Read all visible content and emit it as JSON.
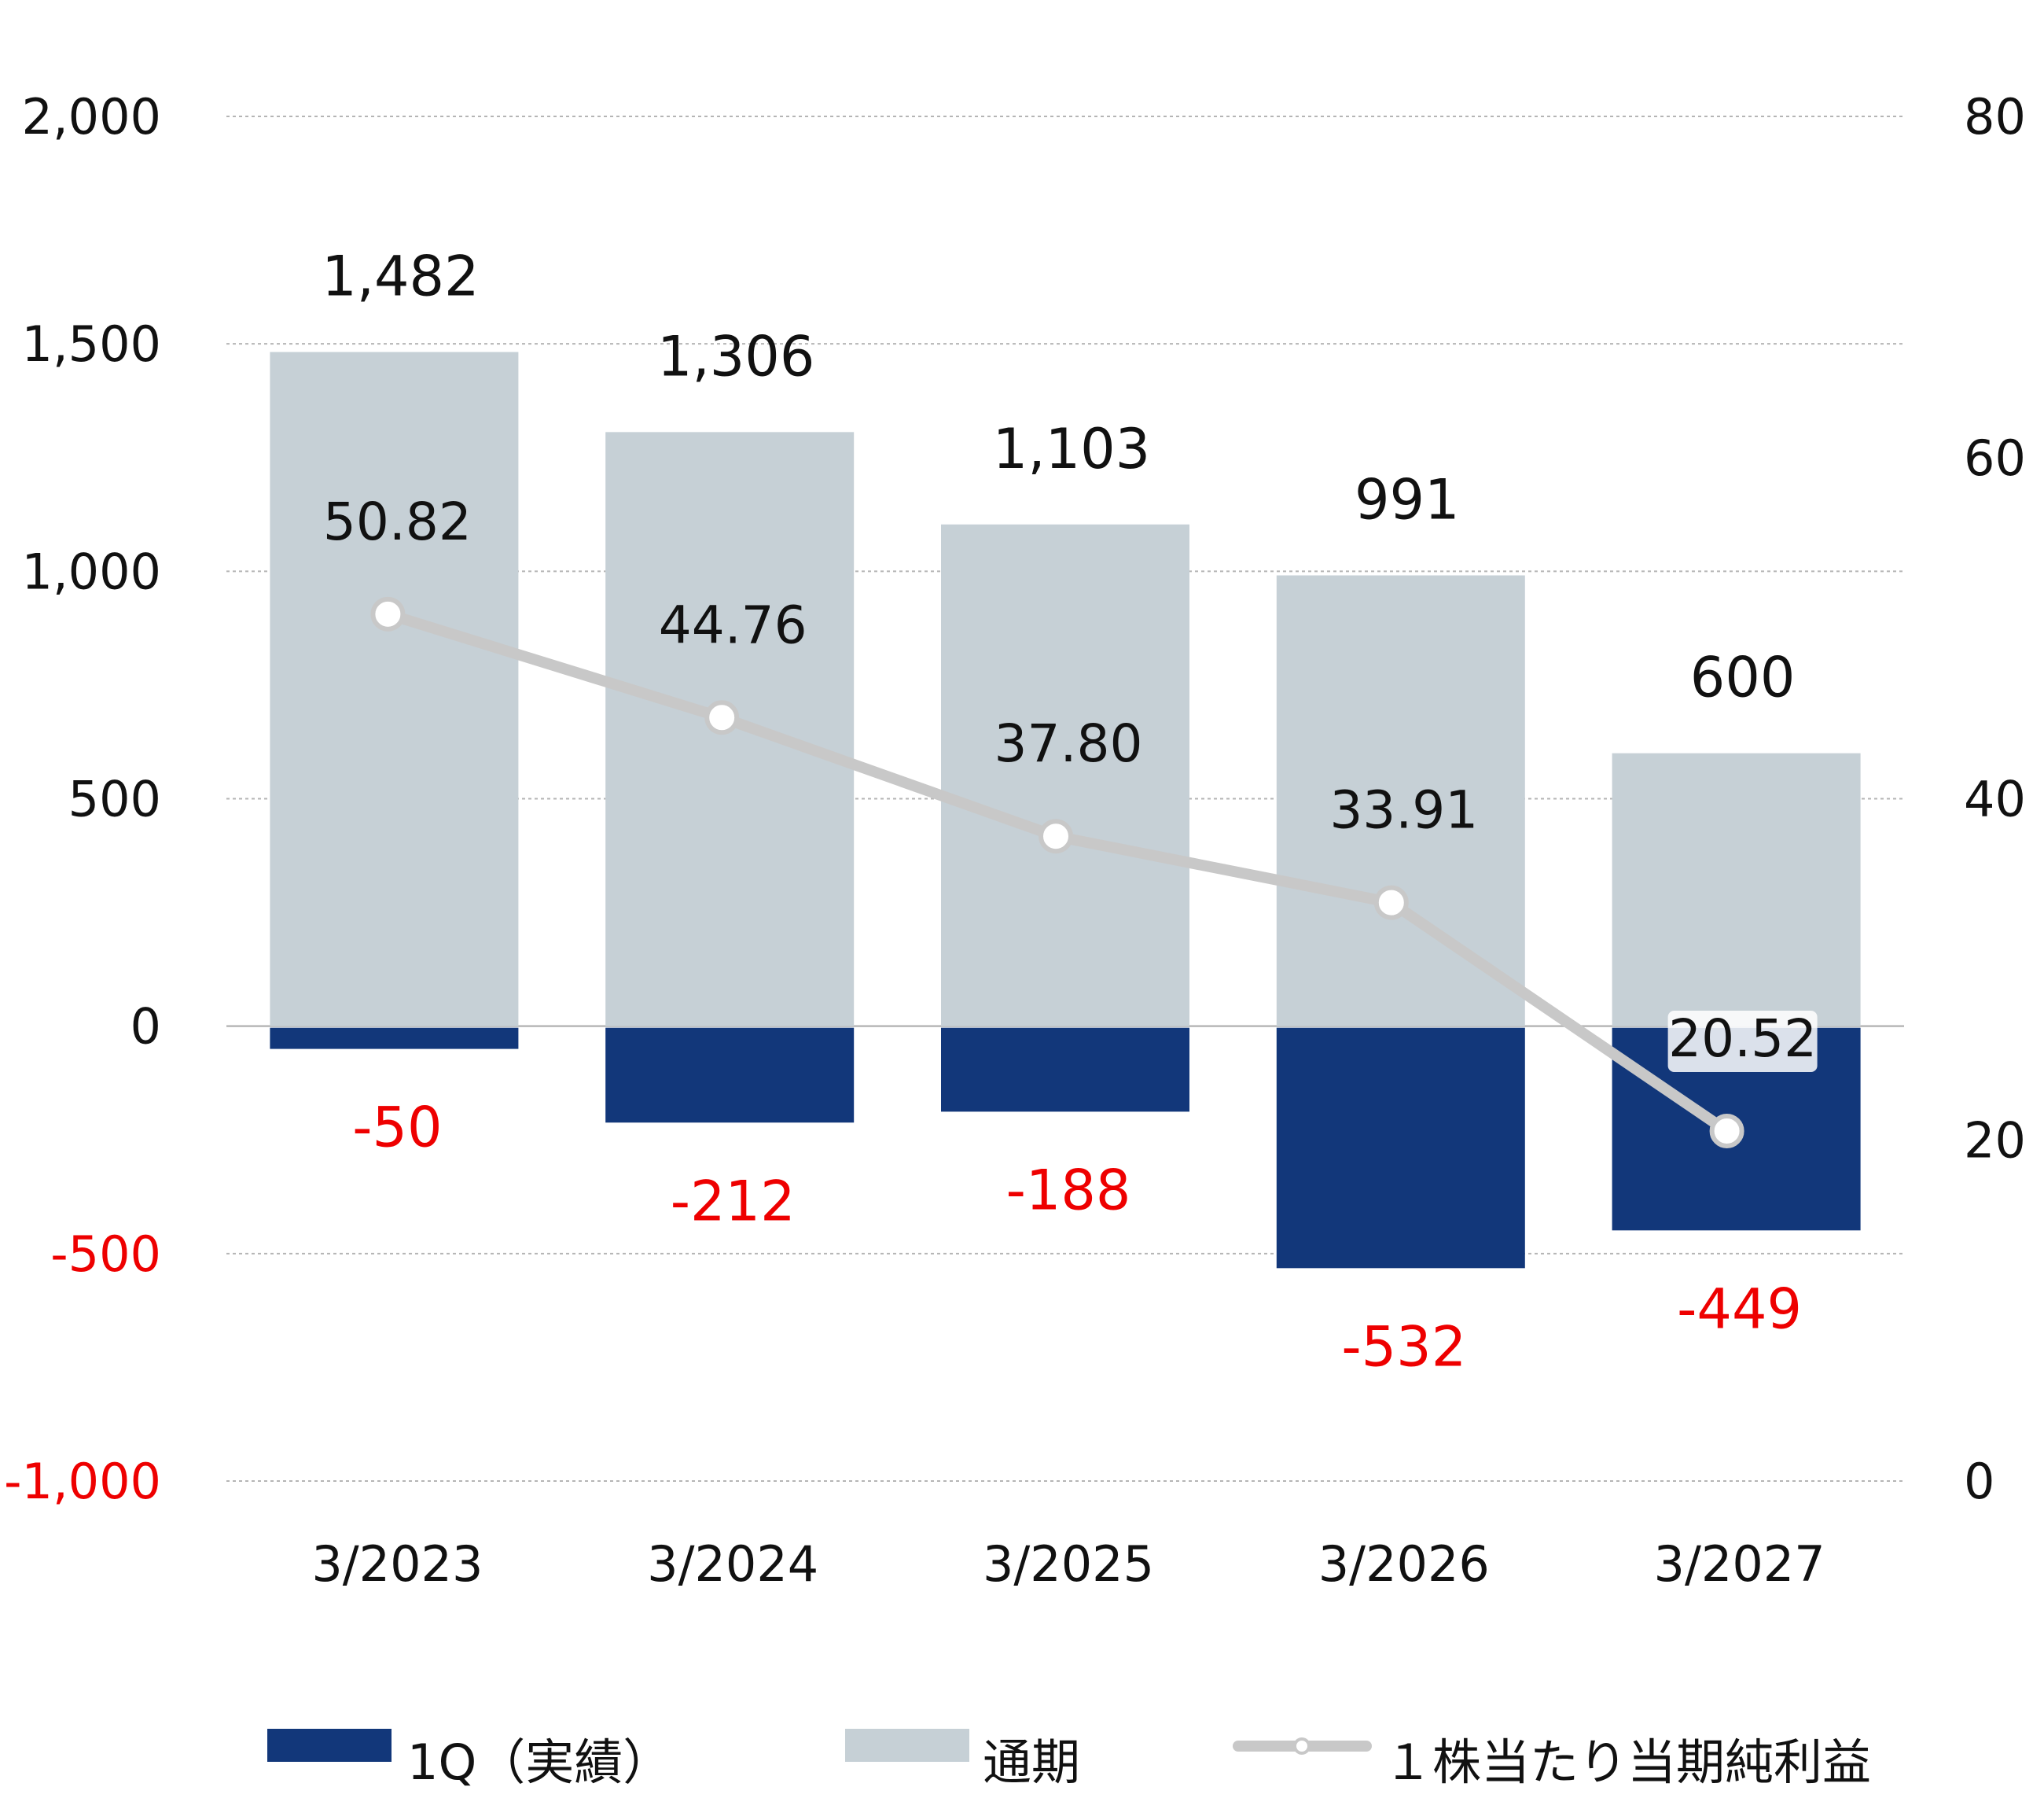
{
  "chart_data": {
    "type": "bar",
    "categories": [
      "3/2023",
      "3/2024",
      "3/2025",
      "3/2026",
      "3/2027"
    ],
    "series": [
      {
        "name": "通期",
        "type": "bar",
        "axis": "left",
        "color": "#c6d0d6",
        "values": [
          1482,
          1306,
          1103,
          991,
          600
        ],
        "labels": [
          "1,482",
          "1,306",
          "1,103",
          "991",
          "600"
        ]
      },
      {
        "name": "1Q（実績）",
        "type": "bar",
        "axis": "left",
        "color": "#12377a",
        "values": [
          -50,
          -212,
          -188,
          -532,
          -449
        ],
        "labels": [
          "-50",
          "-212",
          "-188",
          "-532",
          "-449"
        ],
        "label_color": "#ee0000"
      },
      {
        "name": "１株当たり当期純利益",
        "type": "line",
        "axis": "right",
        "color": "#c8c8c8",
        "values": [
          50.82,
          44.76,
          37.8,
          33.91,
          20.52
        ],
        "labels": [
          "50.82",
          "44.76",
          "37.80",
          "33.91",
          "20.52"
        ]
      }
    ],
    "y_left": {
      "ylim": [
        -1000,
        2000
      ],
      "ticks": [
        2000,
        1500,
        1000,
        500,
        0,
        -500,
        -1000
      ],
      "tick_labels": [
        "2,000",
        "1,500",
        "1,000",
        "500",
        "0",
        "-500",
        "-1,000"
      ],
      "negative_color": "#ee0000"
    },
    "y_right": {
      "ylim": [
        0,
        80
      ],
      "ticks": [
        80,
        60,
        40,
        20,
        0
      ],
      "tick_labels": [
        "80",
        "60",
        "40",
        "20",
        "0"
      ]
    },
    "grid": "dotted horizontal",
    "legend_position": "bottom",
    "legend": [
      "1Q（実績）",
      "通期",
      "１株当たり当期純利益"
    ]
  }
}
